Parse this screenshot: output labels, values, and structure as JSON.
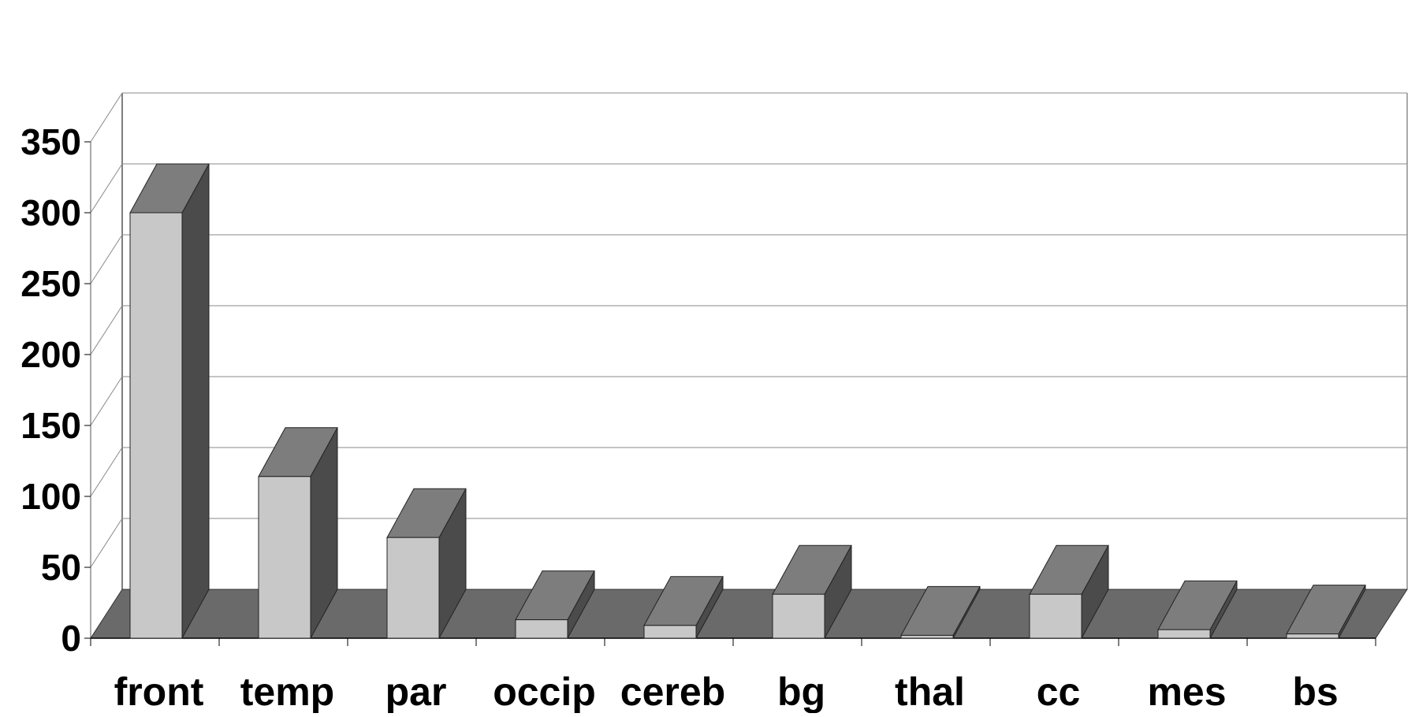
{
  "chart_data": {
    "type": "bar",
    "style": "3d-column",
    "title": "",
    "xlabel": "",
    "ylabel": "",
    "categories": [
      "front",
      "temp",
      "par",
      "occip",
      "cereb",
      "bg",
      "thal",
      "cc",
      "mes",
      "bs"
    ],
    "values": [
      300,
      114,
      71,
      13,
      9,
      31,
      2,
      31,
      6,
      3
    ],
    "ylim": [
      0,
      350
    ],
    "yticks": [
      0,
      50,
      100,
      150,
      200,
      250,
      300,
      350
    ],
    "grid": true,
    "legend": "none",
    "colors": {
      "bar_front": "#c8c8c8",
      "bar_top": "#7d7d7d",
      "bar_side": "#4b4b4b",
      "floor": "#6a6a6a",
      "gridline": "#8a8a8a",
      "wall_edge": "#555555"
    }
  }
}
